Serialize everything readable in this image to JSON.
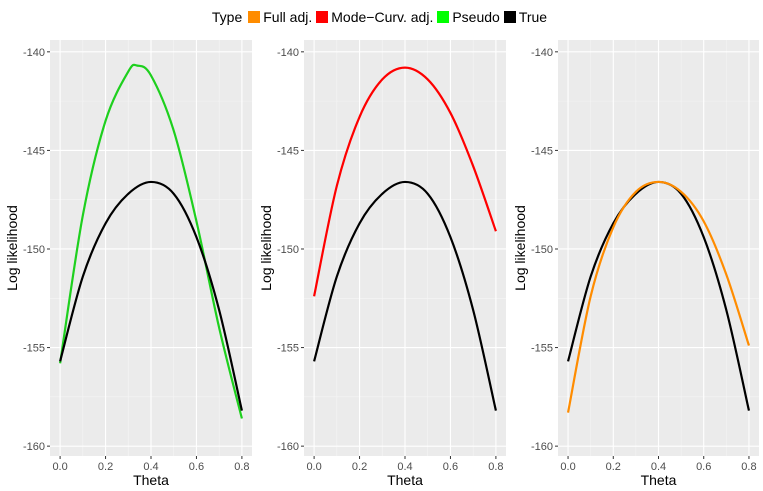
{
  "legend": {
    "title": "Type",
    "items": [
      {
        "label": "Full adj.",
        "color": "#FF8C00"
      },
      {
        "label": "Mode−Curv. adj.",
        "color": "#FF0000"
      },
      {
        "label": "Pseudo",
        "color": "#00FF00"
      },
      {
        "label": "True",
        "color": "#000000"
      }
    ]
  },
  "chart_data": [
    {
      "type": "line",
      "xlabel": "Theta",
      "ylabel": "Log likelihood",
      "xlim": [
        0.0,
        0.8
      ],
      "ylim": [
        -160.5,
        -139.4
      ],
      "x_ticks": [
        "0.0",
        "0.2",
        "0.4",
        "0.6",
        "0.8"
      ],
      "y_ticks": [
        "-140",
        "-145",
        "-150",
        "-155",
        "-160"
      ],
      "grid": true,
      "series": [
        {
          "name": "Pseudo",
          "color": "#1ED01E",
          "x": [
            0.0,
            0.1,
            0.2,
            0.3,
            0.34,
            0.4,
            0.5,
            0.6,
            0.7,
            0.8
          ],
          "y": [
            -155.8,
            -148.3,
            -143.5,
            -141.0,
            -140.7,
            -141.2,
            -144.0,
            -148.6,
            -154.0,
            -158.6
          ]
        },
        {
          "name": "True",
          "color": "#000000",
          "x": [
            0.0,
            0.1,
            0.2,
            0.3,
            0.4,
            0.5,
            0.6,
            0.7,
            0.8
          ],
          "y": [
            -155.7,
            -151.4,
            -148.7,
            -147.2,
            -146.6,
            -147.2,
            -149.4,
            -153.1,
            -158.2
          ]
        }
      ]
    },
    {
      "type": "line",
      "xlabel": "Theta",
      "ylabel": "Log likelihood",
      "xlim": [
        0.0,
        0.8
      ],
      "ylim": [
        -160.5,
        -139.4
      ],
      "x_ticks": [
        "0.0",
        "0.2",
        "0.4",
        "0.6",
        "0.8"
      ],
      "y_ticks": [
        "-140",
        "-145",
        "-150",
        "-155",
        "-160"
      ],
      "grid": true,
      "series": [
        {
          "name": "Mode−Curv. adj.",
          "color": "#FF0000",
          "x": [
            0.0,
            0.1,
            0.2,
            0.3,
            0.4,
            0.5,
            0.6,
            0.7,
            0.8
          ],
          "y": [
            -152.4,
            -146.8,
            -143.3,
            -141.4,
            -140.8,
            -141.4,
            -143.1,
            -145.8,
            -149.1
          ]
        },
        {
          "name": "True",
          "color": "#000000",
          "x": [
            0.0,
            0.1,
            0.2,
            0.3,
            0.4,
            0.5,
            0.6,
            0.7,
            0.8
          ],
          "y": [
            -155.7,
            -151.4,
            -148.7,
            -147.2,
            -146.6,
            -147.2,
            -149.4,
            -153.1,
            -158.2
          ]
        }
      ]
    },
    {
      "type": "line",
      "xlabel": "Theta",
      "ylabel": "Log likelihood",
      "xlim": [
        0.0,
        0.8
      ],
      "ylim": [
        -160.5,
        -139.4
      ],
      "x_ticks": [
        "0.0",
        "0.2",
        "0.4",
        "0.6",
        "0.8"
      ],
      "y_ticks": [
        "-140",
        "-145",
        "-150",
        "-155",
        "-160"
      ],
      "grid": true,
      "series": [
        {
          "name": "True",
          "color": "#000000",
          "x": [
            0.0,
            0.1,
            0.2,
            0.3,
            0.4,
            0.5,
            0.6,
            0.7,
            0.8
          ],
          "y": [
            -155.7,
            -151.4,
            -148.7,
            -147.2,
            -146.6,
            -147.2,
            -149.4,
            -153.1,
            -158.2
          ]
        },
        {
          "name": "Full adj.",
          "color": "#FF8C00",
          "x": [
            0.0,
            0.1,
            0.2,
            0.3,
            0.4,
            0.5,
            0.6,
            0.7,
            0.8
          ],
          "y": [
            -158.3,
            -152.4,
            -148.9,
            -147.1,
            -146.6,
            -147.1,
            -148.6,
            -151.3,
            -154.9
          ]
        }
      ]
    }
  ]
}
